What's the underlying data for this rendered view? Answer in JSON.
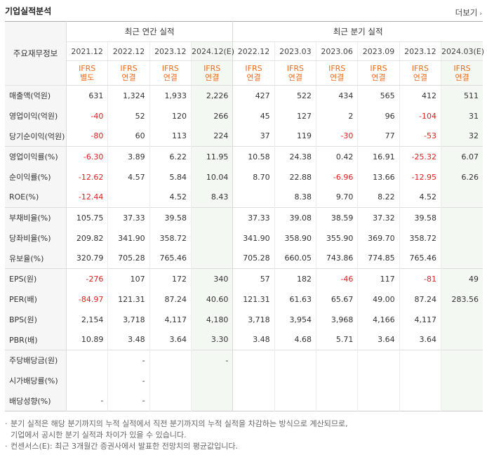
{
  "header": {
    "title": "기업실적분석",
    "more_label": "더보기"
  },
  "table": {
    "label_header": "주요재무정보",
    "annual_header": "최근 연간 실적",
    "quarter_header": "최근 분기 실적",
    "annual_periods": [
      "2021.12",
      "2022.12",
      "2023.12",
      "2024.12(E)"
    ],
    "quarter_periods": [
      "2022.12",
      "2023.03",
      "2023.06",
      "2023.09",
      "2023.12",
      "2024.03(E)"
    ],
    "annual_ifrs": [
      {
        "l1": "IFRS",
        "l2": "별도"
      },
      {
        "l1": "IFRS",
        "l2": "연결"
      },
      {
        "l1": "IFRS",
        "l2": "연결"
      },
      {
        "l1": "IFRS",
        "l2": "연결"
      }
    ],
    "quarter_ifrs": [
      {
        "l1": "IFRS",
        "l2": "연결"
      },
      {
        "l1": "IFRS",
        "l2": "연결"
      },
      {
        "l1": "IFRS",
        "l2": "연결"
      },
      {
        "l1": "IFRS",
        "l2": "연결"
      },
      {
        "l1": "IFRS",
        "l2": "연결"
      },
      {
        "l1": "IFRS",
        "l2": "연결"
      }
    ],
    "rows": [
      {
        "label": "매출액(억원)",
        "annual": [
          "631",
          "1,324",
          "1,933",
          "2,226"
        ],
        "quarter": [
          "427",
          "522",
          "434",
          "565",
          "412",
          "511"
        ]
      },
      {
        "label": "영업이익(억원)",
        "annual": [
          "-40",
          "52",
          "120",
          "266"
        ],
        "quarter": [
          "45",
          "127",
          "2",
          "96",
          "-104",
          "31"
        ]
      },
      {
        "label": "당기순이익(억원)",
        "annual": [
          "-80",
          "60",
          "113",
          "224"
        ],
        "quarter": [
          "37",
          "119",
          "-30",
          "77",
          "-53",
          "32"
        ]
      },
      {
        "label": "영업이익률(%)",
        "annual": [
          "-6.30",
          "3.89",
          "6.22",
          "11.95"
        ],
        "quarter": [
          "10.58",
          "24.38",
          "0.42",
          "16.91",
          "-25.32",
          "6.07"
        ]
      },
      {
        "label": "순이익률(%)",
        "annual": [
          "-12.62",
          "4.57",
          "5.84",
          "10.04"
        ],
        "quarter": [
          "8.70",
          "22.88",
          "-6.96",
          "13.66",
          "-12.95",
          "6.26"
        ]
      },
      {
        "label": "ROE(%)",
        "annual": [
          "-12.44",
          "",
          "4.52",
          "8.43"
        ],
        "quarter": [
          "",
          "8.38",
          "9.70",
          "8.22",
          "4.52",
          ""
        ]
      },
      {
        "label": "부채비율(%)",
        "annual": [
          "105.75",
          "37.33",
          "39.58",
          ""
        ],
        "quarter": [
          "37.33",
          "39.08",
          "38.59",
          "37.32",
          "39.58",
          ""
        ]
      },
      {
        "label": "당좌비율(%)",
        "annual": [
          "209.82",
          "341.90",
          "358.72",
          ""
        ],
        "quarter": [
          "341.90",
          "358.90",
          "355.90",
          "369.70",
          "358.72",
          ""
        ]
      },
      {
        "label": "유보율(%)",
        "annual": [
          "320.79",
          "705.28",
          "765.46",
          ""
        ],
        "quarter": [
          "705.28",
          "660.05",
          "743.86",
          "774.85",
          "765.46",
          ""
        ]
      },
      {
        "label": "EPS(원)",
        "annual": [
          "-276",
          "107",
          "172",
          "340"
        ],
        "quarter": [
          "57",
          "182",
          "-46",
          "117",
          "-81",
          "49"
        ]
      },
      {
        "label": "PER(배)",
        "annual": [
          "-84.97",
          "121.31",
          "87.24",
          "40.60"
        ],
        "quarter": [
          "121.31",
          "61.63",
          "65.67",
          "49.00",
          "87.24",
          "283.56"
        ]
      },
      {
        "label": "BPS(원)",
        "annual": [
          "2,154",
          "3,718",
          "4,117",
          "4,180"
        ],
        "quarter": [
          "3,718",
          "3,954",
          "3,968",
          "4,166",
          "4,117",
          ""
        ]
      },
      {
        "label": "PBR(배)",
        "annual": [
          "10.89",
          "3.48",
          "3.64",
          "3.30"
        ],
        "quarter": [
          "3.48",
          "4.68",
          "5.71",
          "3.64",
          "3.64",
          ""
        ]
      },
      {
        "label": "주당배당금(원)",
        "annual": [
          "",
          "-",
          "",
          "-"
        ],
        "quarter": [
          "",
          "",
          "",
          "",
          "",
          ""
        ]
      },
      {
        "label": "시가배당률(%)",
        "annual": [
          "",
          "-",
          "",
          ""
        ],
        "quarter": [
          "",
          "",
          "",
          "",
          "",
          ""
        ]
      },
      {
        "label": "배당성향(%)",
        "annual": [
          "-",
          "-",
          "",
          ""
        ],
        "quarter": [
          "",
          "",
          "",
          "",
          "",
          ""
        ]
      }
    ]
  },
  "notes": {
    "n1_line1": "분기 실적은 해당 분기까지의 누적 실적에서 직전 분기까지의 누적 실적을 차감하는 방식으로 계산되므로,",
    "n1_line2": "기업에서 공시한 분기 실적과 차이가 있을 수 있습니다.",
    "n2": "컨센서스(E): 최근 3개월간 증권사에서 발표한 전망치의 평균값입니다."
  }
}
